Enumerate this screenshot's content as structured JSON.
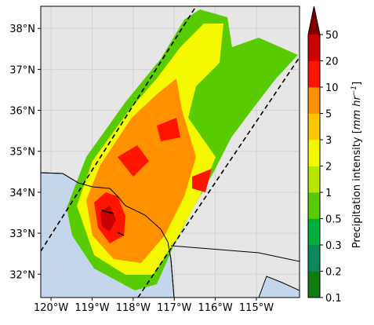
{
  "map": {
    "xlim": [
      -120.25,
      -113.95
    ],
    "ylim": [
      31.43,
      38.54
    ],
    "xticks": [
      {
        "value": -120,
        "label": "120°W"
      },
      {
        "value": -119,
        "label": "119°W"
      },
      {
        "value": -118,
        "label": "118°W"
      },
      {
        "value": -117,
        "label": "117°W"
      },
      {
        "value": -116,
        "label": "116°W"
      },
      {
        "value": -115,
        "label": "115°W"
      }
    ],
    "yticks": [
      {
        "value": 32,
        "label": "32°N"
      },
      {
        "value": 33,
        "label": "33°N"
      },
      {
        "value": 34,
        "label": "34°N"
      },
      {
        "value": 35,
        "label": "35°N"
      },
      {
        "value": 36,
        "label": "36°N"
      },
      {
        "value": 37,
        "label": "37°N"
      },
      {
        "value": 38,
        "label": "38°N"
      }
    ],
    "grid": true
  },
  "colorbar": {
    "levels": [
      0.1,
      0.2,
      0.3,
      0.5,
      1,
      2,
      3,
      5,
      10,
      20,
      50
    ],
    "colors": [
      "#127a12",
      "#0a8a5a",
      "#00b03c",
      "#58cc00",
      "#b8e600",
      "#f4f800",
      "#ffc800",
      "#ff9000",
      "#ff1400",
      "#c80000"
    ],
    "extend_color": "#800000",
    "label_parts": [
      "Precipitation intensity [",
      "mm hr",
      "−1",
      "]"
    ]
  }
}
